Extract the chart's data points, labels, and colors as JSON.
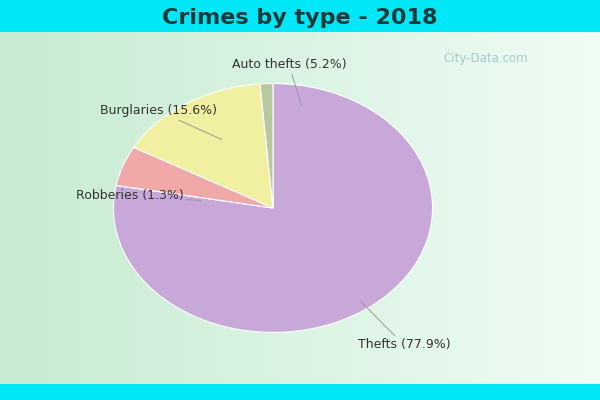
{
  "title": "Crimes by type - 2018",
  "slices": [
    {
      "label": "Thefts (77.9%)",
      "value": 77.9,
      "color": "#c8a8d8"
    },
    {
      "label": "Auto thefts (5.2%)",
      "value": 5.2,
      "color": "#f0a8a8"
    },
    {
      "label": "Burglaries (15.6%)",
      "value": 15.6,
      "color": "#f0f0a0"
    },
    {
      "label": "Robberies (1.3%)",
      "value": 1.3,
      "color": "#b8c8a0"
    }
  ],
  "background_top": "#00e8f8",
  "background_main_left": "#c8e8d0",
  "background_main_right": "#e8f8f0",
  "title_fontsize": 16,
  "label_fontsize": 9,
  "watermark": "City-Data.com"
}
